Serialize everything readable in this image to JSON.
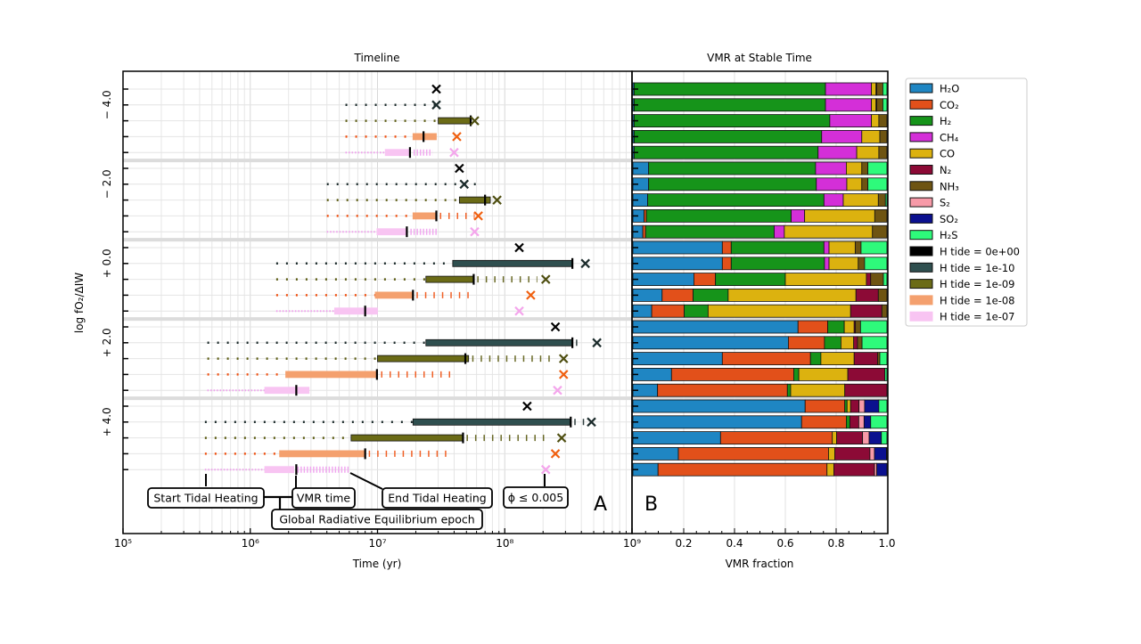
{
  "chart_data": [
    {
      "panel": "A",
      "type": "timeline",
      "title": "Timeline",
      "xlabel": "Time (yr)",
      "ylabel": "log fO₂/ΔIW",
      "xscale": "log",
      "xlim": [
        100000,
        1000000000
      ],
      "xticks": [
        100000,
        1000000,
        10000000,
        100000000,
        1000000000
      ],
      "xtick_labels": [
        "10⁵",
        "10⁶",
        "10⁷",
        "10⁸",
        "10⁹"
      ],
      "grid": true,
      "groups": [
        {
          "label": "− 4.0",
          "rows": [
            {
              "series": "H tide = 0e+00",
              "phi": 29000000.0
            },
            {
              "series": "H tide = 1e-10",
              "start": 5600000.0,
              "end": 29000000.0,
              "phi": 29000000.0
            },
            {
              "series": "H tide = 1e-09",
              "start": 5600000.0,
              "gre": [
                30000000.0,
                54000000.0
              ],
              "vmr": 54000000.0,
              "end": 54000000.0,
              "phi": 58000000.0
            },
            {
              "series": "H tide = 1e-08",
              "start": 5600000.0,
              "gre": [
                19000000.0,
                29000000.0
              ],
              "vmr": 23000000.0,
              "end": 29000000.0,
              "phi": 42000000.0
            },
            {
              "series": "H tide = 1e-07",
              "start": 5600000.0,
              "gre": [
                11500000.0,
                18000000.0
              ],
              "vmr": 18000000.0,
              "end": 27000000.0,
              "phi": 40000000.0
            }
          ]
        },
        {
          "label": "− 2.0",
          "rows": [
            {
              "series": "H tide = 0e+00",
              "phi": 44000000.0
            },
            {
              "series": "H tide = 1e-10",
              "start": 4000000.0,
              "end": 62000000.0,
              "phi": 48000000.0
            },
            {
              "series": "H tide = 1e-09",
              "start": 4000000.0,
              "gre": [
                44000000.0,
                77000000.0
              ],
              "vmr": 70000000.0,
              "end": 77000000.0,
              "phi": 87000000.0
            },
            {
              "series": "H tide = 1e-08",
              "start": 4000000.0,
              "gre": [
                19000000.0,
                29000000.0
              ],
              "vmr": 29000000.0,
              "end": 58000000.0,
              "phi": 62000000.0
            },
            {
              "series": "H tide = 1e-07",
              "start": 4000000.0,
              "gre": [
                9900000.0,
                17000000.0
              ],
              "vmr": 17000000.0,
              "end": 30000000.0,
              "phi": 58000000.0
            }
          ]
        },
        {
          "label": "+ 0.0",
          "rows": [
            {
              "series": "H tide = 0e+00",
              "phi": 130000000.0
            },
            {
              "series": "H tide = 1e-10",
              "start": 1600000.0,
              "gre": [
                39000000.0,
                340000000.0
              ],
              "vmr": 340000000.0,
              "end": 340000000.0,
              "phi": 430000000.0
            },
            {
              "series": "H tide = 1e-09",
              "start": 1600000.0,
              "gre": [
                24000000.0,
                57000000.0
              ],
              "vmr": 57000000.0,
              "end": 180000000.0,
              "phi": 210000000.0
            },
            {
              "series": "H tide = 1e-08",
              "start": 1600000.0,
              "gre": [
                9600000.0,
                19000000.0
              ],
              "vmr": 19000000.0,
              "end": 54000000.0,
              "phi": 160000000.0
            },
            {
              "series": "H tide = 1e-07",
              "start": 1600000.0,
              "gre": [
                4600000.0,
                10000000.0
              ],
              "vmr": 8000000.0,
              "end": 10000000.0,
              "phi": 130000000.0
            }
          ]
        },
        {
          "label": "+ 2.0",
          "rows": [
            {
              "series": "H tide = 0e+00",
              "phi": 250000000.0
            },
            {
              "series": "H tide = 1e-10",
              "start": 460000.0,
              "gre": [
                24000000.0,
                340000000.0
              ],
              "vmr": 340000000.0,
              "end": 410000000.0,
              "phi": 530000000.0
            },
            {
              "series": "H tide = 1e-09",
              "start": 460000.0,
              "gre": [
                10000000.0,
                52000000.0
              ],
              "vmr": 49000000.0,
              "end": 230000000.0,
              "phi": 290000000.0
            },
            {
              "series": "H tide = 1e-08",
              "start": 460000.0,
              "gre": [
                1900000.0,
                10000000.0
              ],
              "vmr": 9900000.0,
              "end": 42000000.0,
              "phi": 290000000.0
            },
            {
              "series": "H tide = 1e-07",
              "start": 460000.0,
              "gre": [
                1300000.0,
                2900000.0
              ],
              "vmr": 2300000.0,
              "end": 2900000.0,
              "phi": 260000000.0
            }
          ]
        },
        {
          "label": "+ 4.0",
          "rows": [
            {
              "series": "H tide = 0e+00",
              "phi": 150000000.0
            },
            {
              "series": "H tide = 1e-10",
              "start": 440000.0,
              "gre": [
                19000000.0,
                330000000.0
              ],
              "vmr": 330000000.0,
              "end": 430000000.0,
              "phi": 480000000.0
            },
            {
              "series": "H tide = 1e-09",
              "start": 440000.0,
              "gre": [
                6200000.0,
                47000000.0
              ],
              "vmr": 47000000.0,
              "end": 230000000.0,
              "phi": 280000000.0
            },
            {
              "series": "H tide = 1e-08",
              "start": 440000.0,
              "gre": [
                1700000.0,
                8000000.0
              ],
              "vmr": 8000000.0,
              "end": 37000000.0,
              "phi": 250000000.0
            },
            {
              "series": "H tide = 1e-07",
              "start": 440000.0,
              "gre": [
                1300000.0,
                2200000.0
              ],
              "vmr": 2300000.0,
              "end": 6000000.0,
              "phi": 210000000.0
            }
          ]
        }
      ],
      "annotations": {
        "start": "Start Tidal Heating",
        "vmr": "VMR time",
        "end": "End Tidal Heating",
        "phi": "ϕ ≤ 0.005",
        "gre": "Global Radiative Equilibrium epoch"
      },
      "panel_label": "A"
    },
    {
      "panel": "B",
      "type": "bar",
      "orientation": "horizontal",
      "stacked": true,
      "title": "VMR at Stable Time",
      "xlabel": "VMR fraction",
      "xlim": [
        0,
        1
      ],
      "xticks": [
        0.2,
        0.4,
        0.6,
        0.8,
        1.0
      ],
      "xtick_labels": [
        "0.2",
        "0.4",
        "0.6",
        "0.8",
        "1.0"
      ],
      "grid": true,
      "species": [
        "H2O",
        "CO2",
        "H2",
        "CH4",
        "CO",
        "N2",
        "NH3",
        "S2",
        "SO2",
        "H2S"
      ],
      "rows": [
        [
          0.005,
          0,
          0.753,
          0.181,
          0.018,
          0.003,
          0.024,
          0,
          0,
          0.016
        ],
        [
          0.005,
          0,
          0.753,
          0.181,
          0.018,
          0.003,
          0.024,
          0,
          0,
          0.016
        ],
        [
          0.005,
          0,
          0.77,
          0.164,
          0.029,
          0,
          0.032,
          0,
          0,
          0
        ],
        [
          0.005,
          0,
          0.738,
          0.158,
          0.071,
          0,
          0.028,
          0,
          0,
          0
        ],
        [
          0.005,
          0,
          0.724,
          0.152,
          0.087,
          0,
          0.032,
          0,
          0,
          0
        ],
        [
          0.062,
          0,
          0.657,
          0.121,
          0.061,
          0,
          0.024,
          0,
          0,
          0.075
        ],
        [
          0.062,
          0,
          0.66,
          0.12,
          0.059,
          0,
          0.024,
          0,
          0,
          0.075
        ],
        [
          0.058,
          0,
          0.694,
          0.076,
          0.138,
          0,
          0.028,
          0,
          0,
          0.006
        ],
        [
          0.044,
          0.009,
          0.57,
          0.053,
          0.276,
          0,
          0.048,
          0,
          0,
          0
        ],
        [
          0.039,
          0.011,
          0.506,
          0.04,
          0.347,
          0,
          0.057,
          0,
          0,
          0
        ],
        [
          0.352,
          0.035,
          0.365,
          0.02,
          0.103,
          0,
          0.023,
          0,
          0,
          0.102
        ],
        [
          0.352,
          0.035,
          0.367,
          0.018,
          0.115,
          0,
          0.025,
          0,
          0,
          0.088
        ],
        [
          0.24,
          0.085,
          0.275,
          0,
          0.319,
          0.017,
          0.05,
          0,
          0,
          0.014
        ],
        [
          0.115,
          0.122,
          0.138,
          0,
          0.503,
          0.088,
          0.034,
          0,
          0,
          0
        ],
        [
          0.074,
          0.128,
          0.094,
          0,
          0.561,
          0.123,
          0.02,
          0,
          0,
          0
        ],
        [
          0.65,
          0.117,
          0.065,
          0,
          0.039,
          0.005,
          0.02,
          0,
          0,
          0.104
        ],
        [
          0.612,
          0.142,
          0.065,
          0,
          0.05,
          0.015,
          0.018,
          0,
          0,
          0.098
        ],
        [
          0.352,
          0.347,
          0.041,
          0,
          0.131,
          0.092,
          0.009,
          0,
          0,
          0.028
        ],
        [
          0.152,
          0.481,
          0.02,
          0,
          0.193,
          0.146,
          0,
          0,
          0,
          0.008
        ],
        [
          0.097,
          0.511,
          0.013,
          0,
          0.213,
          0.166,
          0,
          0,
          0,
          0
        ],
        [
          0.678,
          0.156,
          0.009,
          0,
          0.014,
          0.033,
          0,
          0.022,
          0.056,
          0.032
        ],
        [
          0.664,
          0.176,
          0.014,
          0,
          0,
          0.035,
          0,
          0.021,
          0.026,
          0.064
        ],
        [
          0.345,
          0.44,
          0,
          0,
          0.017,
          0.102,
          0,
          0.026,
          0.048,
          0.022
        ],
        [
          0.179,
          0.591,
          0,
          0,
          0.025,
          0.138,
          0,
          0.018,
          0.047,
          0.002
        ],
        [
          0.099,
          0.665,
          0,
          0,
          0.027,
          0.16,
          0,
          0.009,
          0.04,
          0
        ]
      ],
      "panel_label": "B"
    }
  ],
  "legend": {
    "placement": "outside-right",
    "species": [
      {
        "key": "H2O",
        "label": "H₂O",
        "color": "#1f86c3"
      },
      {
        "key": "CO2",
        "label": "CO₂",
        "color": "#e2501a"
      },
      {
        "key": "H2",
        "label": "H₂",
        "color": "#16941a"
      },
      {
        "key": "CH4",
        "label": "CH₄",
        "color": "#d42fd8"
      },
      {
        "key": "CO",
        "label": "CO",
        "color": "#dcb20f"
      },
      {
        "key": "N2",
        "label": "N₂",
        "color": "#8c0a36"
      },
      {
        "key": "NH3",
        "label": "NH₃",
        "color": "#6e5412"
      },
      {
        "key": "S2",
        "label": "S₂",
        "color": "#f79aa8"
      },
      {
        "key": "SO2",
        "label": "SO₂",
        "color": "#0b108f"
      },
      {
        "key": "H2S",
        "label": "H₂S",
        "color": "#2efa7b"
      }
    ],
    "tides": [
      {
        "label": "H tide = 0e+00",
        "color": "#000000"
      },
      {
        "label": "H tide = 1e-10",
        "color": "#2f4f4f"
      },
      {
        "label": "H tide = 1e-09",
        "color": "#6b6b16"
      },
      {
        "label": "H tide = 1e-08",
        "color": "#f4a06e"
      },
      {
        "label": "H tide = 1e-07",
        "color": "#f8c4f2"
      }
    ]
  },
  "marker_colors": [
    "#000000",
    "#1b2b2b",
    "#4e4e10",
    "#f06010",
    "#f4a6ec"
  ],
  "dot_colors": [
    "#000000",
    "#1b2b2b",
    "#5a5a10",
    "#f05010",
    "#f0a0ee"
  ]
}
